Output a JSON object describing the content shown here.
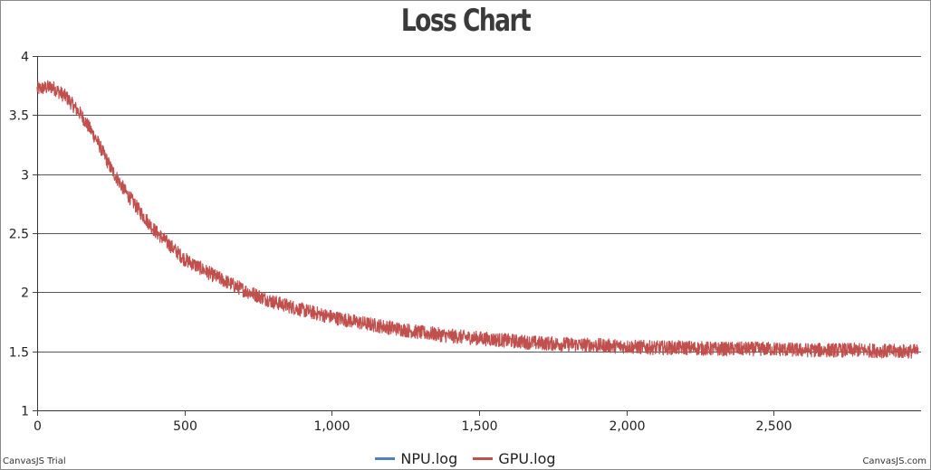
{
  "chart_data": {
    "type": "line",
    "title": "Loss Chart",
    "xlabel": "",
    "ylabel": "",
    "xlim": [
      0,
      3000
    ],
    "ylim": [
      1,
      4
    ],
    "x_ticks": [
      0,
      500,
      1000,
      1500,
      2000,
      2500
    ],
    "x_tick_labels": [
      "0",
      "500",
      "1,000",
      "1,500",
      "2,000",
      "2,500"
    ],
    "y_ticks": [
      1,
      1.5,
      2,
      2.5,
      3,
      3.5,
      4
    ],
    "y_tick_labels": [
      "1",
      "1.5",
      "2",
      "2.5",
      "3",
      "3.5",
      "4"
    ],
    "grid": "horizontal",
    "legend_position": "bottom-center",
    "series": [
      {
        "name": "NPU.log",
        "color": "#4f81bc",
        "x": [],
        "values": []
      },
      {
        "name": "GPU.log",
        "color": "#c0504e",
        "x": [
          0,
          50,
          100,
          150,
          200,
          250,
          300,
          350,
          400,
          450,
          500,
          600,
          700,
          800,
          900,
          1000,
          1100,
          1200,
          1300,
          1400,
          1500,
          1600,
          1700,
          1800,
          1900,
          2000,
          2100,
          2200,
          2300,
          2400,
          2500,
          2600,
          2700,
          2800,
          2900,
          2990
        ],
        "values": [
          3.72,
          3.74,
          3.65,
          3.5,
          3.3,
          3.05,
          2.85,
          2.68,
          2.52,
          2.4,
          2.28,
          2.14,
          2.02,
          1.92,
          1.85,
          1.79,
          1.74,
          1.7,
          1.66,
          1.63,
          1.61,
          1.59,
          1.57,
          1.56,
          1.55,
          1.54,
          1.53,
          1.53,
          1.52,
          1.52,
          1.52,
          1.51,
          1.51,
          1.51,
          1.5,
          1.5
        ],
        "noise_amplitude": 0.06
      }
    ]
  },
  "credits": {
    "left": "CanvasJS Trial",
    "right": "CanvasJS.com"
  }
}
